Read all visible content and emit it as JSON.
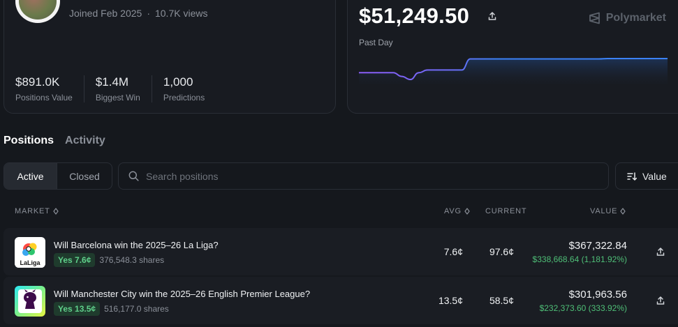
{
  "profile": {
    "joined": "Joined Feb 2025",
    "views": "10.7K views",
    "stats": [
      {
        "value": "$891.0K",
        "label": "Positions Value"
      },
      {
        "value": "$1.4M",
        "label": "Biggest Win"
      },
      {
        "value": "1,000",
        "label": "Predictions"
      }
    ]
  },
  "pnl": {
    "value": "$51,249.50",
    "period": "Past Day",
    "brand": "Polymarket",
    "chart_series": [
      20,
      20,
      20,
      20,
      20,
      30,
      38,
      20,
      13,
      13,
      13,
      13,
      13,
      -16,
      -16,
      -16,
      -16,
      -16,
      -16,
      -16,
      -16,
      -16,
      -16,
      -16,
      -16,
      -16,
      -16,
      -16,
      -16,
      -17,
      -17,
      -17,
      -17,
      -17,
      -17,
      -17,
      -17
    ]
  },
  "tabs": {
    "positions": "Positions",
    "activity": "Activity"
  },
  "filter": {
    "active": "Active",
    "closed": "Closed"
  },
  "search": {
    "placeholder": "Search positions"
  },
  "sort": {
    "label": "Value"
  },
  "table": {
    "headers": {
      "market": "MARKET",
      "avg": "AVG",
      "current": "CURRENT",
      "value": "VALUE"
    },
    "rows": [
      {
        "title": "Will Barcelona win the 2025–26 La Liga?",
        "badge": "Yes 7.6¢",
        "shares": "376,548.3 shares",
        "avg": "7.6¢",
        "current": "97.6¢",
        "value": "$367,322.84",
        "gain": "$338,668.64 (1,181.92%)",
        "icon": "laliga-logo-icon",
        "icon_text": "LaLiga"
      },
      {
        "title": "Will Manchester City win the 2025–26 English Premier League?",
        "badge": "Yes 13.5¢",
        "shares": "516,177.0 shares",
        "avg": "13.5¢",
        "current": "58.5¢",
        "value": "$301,963.56",
        "gain": "$232,373.60 (333.92%)",
        "icon": "premier-league-logo-icon"
      }
    ]
  },
  "colors": {
    "accent_green": "#4fbf77",
    "chart_line": "#3b82f6",
    "chart_low": "#8b5cf6"
  }
}
